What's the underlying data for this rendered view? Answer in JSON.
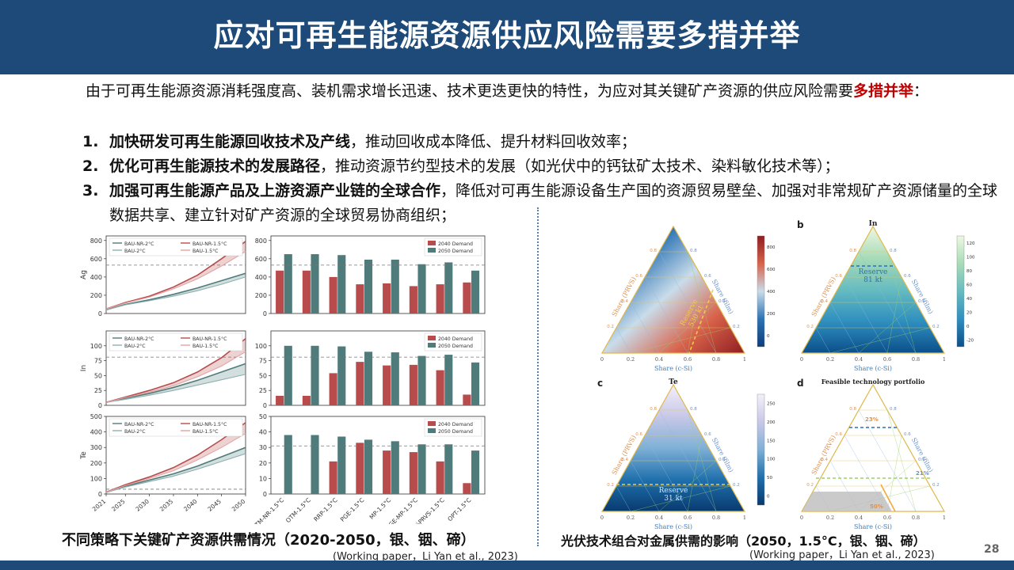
{
  "title": "应对可再生能源资源供应风险需要多措并举",
  "intro": {
    "text": "由于可再生能源资源消耗强度高、装机需求增长迅速、技术更迭更快的特性，为应对其关键矿产资源的供应风险需要",
    "highlight": "多措并举",
    "tail": "："
  },
  "list": [
    {
      "num": "1.",
      "bold": "加快研发可再生能源回收技术及产线",
      "rest": "，推动回收成本降低、提升材料回收效率；"
    },
    {
      "num": "2.",
      "bold": "优化可再生能源技术的发展路径",
      "rest": "，推动资源节约型技术的发展（如光伏中的钙钛矿太技术、染料敏化技术等）；"
    },
    {
      "num": "3.",
      "bold": "加强可再生能源产品及上游资源产业链的全球合作",
      "rest": "，降低对可再生能源设备生产国的资源贸易壁垒、加强对非常规矿产资源储量的全球数据共享、建立针对矿产资源的全球贸易协商组织；"
    }
  ],
  "caption_left": "不同策略下关键矿产资源供需情况（2020-2050，银、铟、碲）",
  "citation_left": "(Working paper，Li Yan et al., 2023)",
  "caption_right": "光伏技术组合对金属供需的影响（2050，1.5°C，银、铟、碲）",
  "citation_right": "(Working paper，Li Yan et al., 2023)",
  "page_number": "28",
  "chart_data": [
    {
      "type": "line",
      "ylabel": "Ag",
      "x": [
        2021,
        2025,
        2030,
        2035,
        2040,
        2045,
        2050
      ],
      "ylim": [
        0,
        850
      ],
      "yticks": [
        0,
        200,
        400,
        600,
        800
      ],
      "reserve": 530,
      "legend": [
        "BAU-NR-2°C",
        "BAU-NR-1.5°C",
        "BAU-2°C",
        "BAU-1.5°C"
      ],
      "series": [
        {
          "name": "BAU-NR-2°C",
          "values": [
            40,
            100,
            150,
            210,
            280,
            360,
            440
          ]
        },
        {
          "name": "BAU-NR-1.5°C",
          "values": [
            50,
            120,
            190,
            290,
            420,
            600,
            790
          ]
        },
        {
          "name": "BAU-2°C",
          "values": [
            40,
            95,
            140,
            190,
            250,
            320,
            400
          ]
        },
        {
          "name": "BAU-1.5°C",
          "values": [
            50,
            115,
            180,
            270,
            380,
            520,
            680
          ]
        }
      ]
    },
    {
      "type": "bar",
      "ylim": [
        0,
        850
      ],
      "yticks": [
        0,
        200,
        400,
        600,
        800
      ],
      "reserve": 530,
      "legend": [
        "2040 Demand",
        "2050 Demand"
      ],
      "categories": [
        "OTM-NR-1.5°C",
        "OTM-1.5°C",
        "RRP-1.5°C",
        "PGE-1.5°C",
        "MP-1.5°C",
        "PGE-MP-1.5°C",
        "20%PRVS-1.5°C",
        "OPT-1.5°C"
      ],
      "series": [
        {
          "name": "2040 Demand",
          "values": [
            470,
            470,
            400,
            320,
            330,
            300,
            320,
            340
          ]
        },
        {
          "name": "2050 Demand",
          "values": [
            650,
            650,
            640,
            590,
            590,
            540,
            560,
            470
          ]
        }
      ]
    },
    {
      "type": "line",
      "ylabel": "In",
      "x": [
        2021,
        2025,
        2030,
        2035,
        2040,
        2045,
        2050
      ],
      "ylim": [
        0,
        125
      ],
      "yticks": [
        0,
        25,
        50,
        75,
        100
      ],
      "reserve": 81,
      "legend": [
        "BAU-NR-2°C",
        "BAU-NR-1.5°C",
        "BAU-2°C",
        "BAU-1.5°C"
      ],
      "series": [
        {
          "name": "BAU-NR-2°C",
          "values": [
            5,
            12,
            20,
            30,
            42,
            56,
            70
          ]
        },
        {
          "name": "BAU-NR-1.5°C",
          "values": [
            5,
            14,
            25,
            38,
            56,
            80,
            112
          ]
        },
        {
          "name": "BAU-2°C",
          "values": [
            5,
            10,
            17,
            25,
            34,
            43,
            52
          ]
        },
        {
          "name": "BAU-1.5°C",
          "values": [
            5,
            13,
            22,
            33,
            48,
            66,
            90
          ]
        }
      ]
    },
    {
      "type": "bar",
      "ylim": [
        0,
        125
      ],
      "yticks": [
        0,
        25,
        50,
        75,
        100
      ],
      "reserve": 81,
      "legend": [
        "2040 Demand",
        "2050 Demand"
      ],
      "categories": [
        "OTM-NR-1.5°C",
        "OTM-1.5°C",
        "RRP-1.5°C",
        "PGE-1.5°C",
        "MP-1.5°C",
        "PGE-MP-1.5°C",
        "20%PRVS-1.5°C",
        "OPT-1.5°C"
      ],
      "series": [
        {
          "name": "2040 Demand",
          "values": [
            16,
            16,
            54,
            73,
            67,
            68,
            59,
            18
          ]
        },
        {
          "name": "2050 Demand",
          "values": [
            100,
            100,
            99,
            90,
            89,
            83,
            85,
            72
          ]
        }
      ]
    },
    {
      "type": "line",
      "ylabel": "Te",
      "x": [
        2021,
        2025,
        2030,
        2035,
        2040,
        2045,
        2050
      ],
      "ylim": [
        0,
        500
      ],
      "yticks": [
        0,
        100,
        200,
        300,
        400,
        500
      ],
      "reserve": 31,
      "legend": [
        "BAU-NR-2°C",
        "BAU-NR-1.5°C",
        "BAU-2°C",
        "BAU-1.5°C"
      ],
      "series": [
        {
          "name": "BAU-NR-2°C",
          "values": [
            10,
            50,
            90,
            130,
            180,
            240,
            300
          ]
        },
        {
          "name": "BAU-NR-1.5°C",
          "values": [
            12,
            60,
            110,
            170,
            250,
            350,
            460
          ]
        },
        {
          "name": "BAU-2°C",
          "values": [
            10,
            45,
            80,
            115,
            160,
            210,
            260
          ]
        },
        {
          "name": "BAU-1.5°C",
          "values": [
            12,
            55,
            100,
            150,
            220,
            300,
            390
          ]
        }
      ]
    },
    {
      "type": "bar",
      "ylim": [
        0,
        50
      ],
      "yticks": [
        0,
        10,
        20,
        30,
        40,
        50
      ],
      "reserve": 31,
      "legend": [
        "2040 Demand",
        "2050 Demand"
      ],
      "categories": [
        "OTM-NR-1.5°C",
        "OTM-1.5°C",
        "RRP-1.5°C",
        "PGE-1.5°C",
        "MP-1.5°C",
        "PGE-MP-1.5°C",
        "20%PRVS-1.5°C",
        "OPT-1.5°C"
      ],
      "series": [
        {
          "name": "2040 Demand",
          "values": [
            0,
            0,
            21,
            33,
            28,
            27,
            21,
            7
          ]
        },
        {
          "name": "2050 Demand",
          "values": [
            38,
            38,
            37,
            35,
            34,
            32,
            32,
            28
          ]
        }
      ]
    }
  ],
  "ternary": {
    "axis_left": "Share (PRVS)",
    "axis_right": "Share (film)",
    "axis_bottom": "Share (c-Si)",
    "bottom_ticks": [
      "0",
      "0.2",
      "0.4",
      "0.6",
      "0.8",
      "1"
    ],
    "side_ticks": [
      "0.2",
      "0.4",
      "0.6",
      "0.8"
    ],
    "panels": [
      {
        "letter": "",
        "metal": "",
        "reserve_label": "Reserve",
        "reserve_value": "530 kt",
        "colorbar": [
          "0",
          "200",
          "400",
          "600",
          "800"
        ],
        "colors": [
          "#0d3d78",
          "#2c73b4",
          "#c9dcea",
          "#d8634a",
          "#8f1d21"
        ]
      },
      {
        "letter": "b",
        "metal": "In",
        "reserve_label": "Reserve",
        "reserve_value": "81 kt",
        "colorbar": [
          "-20",
          "0",
          "20",
          "40",
          "60",
          "80",
          "100",
          "120"
        ],
        "colors": [
          "#0b4f8a",
          "#2f8fbf",
          "#66bcc0",
          "#a8dbb8",
          "#eef8e2"
        ]
      },
      {
        "letter": "c",
        "metal": "Te",
        "reserve_label": "Reserve",
        "reserve_value": "31 kt",
        "colorbar": [
          "0",
          "50",
          "100",
          "150",
          "200",
          "250"
        ],
        "colors": [
          "#083a6e",
          "#1f70ad",
          "#7fb0d6",
          "#c8c8e8",
          "#f4f0fa"
        ]
      },
      {
        "letter": "d",
        "metal": "Feasible technology portfolio",
        "reserve_label": "",
        "reserve_value": "",
        "colorbar": [],
        "colors": [],
        "annotations": [
          "23%",
          "21%",
          "50%"
        ]
      }
    ]
  },
  "colors": {
    "title_bar": "#1d4a78",
    "highlight": "#c00000",
    "bar_2040": "#b84c4c",
    "bar_2050": "#4f7b7b",
    "line_nr2": "#4f7b7b",
    "line_nr15": "#b84c4c",
    "line_bau2": "#8fb0b0",
    "line_bau15": "#e3a3a3"
  }
}
